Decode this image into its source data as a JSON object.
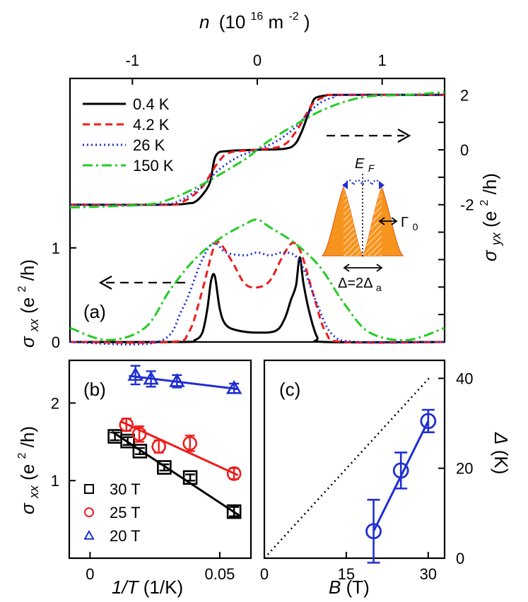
{
  "chart_data": [
    {
      "id": "a",
      "type": "line",
      "panel_label": "(a)",
      "top_axis": {
        "label_var": "n",
        "label_unit": "(10",
        "label_exp": "16",
        "label_unit2": " m",
        "label_exp2": "-2",
        "label_close": ")",
        "range": [
          -1.5,
          1.5
        ],
        "ticks": [
          -1,
          0,
          1
        ],
        "tick_labels": [
          "-1",
          "0",
          "1"
        ]
      },
      "left_axis": {
        "label_var": "σ",
        "label_sub": "xx",
        "label_unit": " (e",
        "label_exp": "2",
        "label_close": "/h)",
        "range": [
          0,
          2.8
        ],
        "ticks": [
          0,
          1
        ],
        "tick_labels": [
          "0",
          "1"
        ]
      },
      "right_axis": {
        "label_var": "σ",
        "label_sub": "yx",
        "label_unit": " (e",
        "label_exp": "2",
        "label_close": "/h)",
        "range": [
          -7,
          2.6
        ],
        "ticks": [
          2,
          0,
          -2
        ],
        "tick_labels": [
          "2",
          "0",
          "-2"
        ]
      },
      "legend": {
        "position": "top-left",
        "entries": [
          {
            "label": "0.4 K",
            "color": "#000000",
            "dash": "solid"
          },
          {
            "label": "4.2 K",
            "color": "#ee1c1c",
            "dash": "dash"
          },
          {
            "label": "26 K",
            "color": "#1f2fd1",
            "dash": "dot"
          },
          {
            "label": "150 K",
            "color": "#22cc22",
            "dash": "dashdot"
          }
        ]
      },
      "series_yx": [
        {
          "name": "0.4 K",
          "x": [
            -1.5,
            -0.72,
            -0.55,
            -0.5,
            -0.45,
            -0.38,
            -0.33,
            -0.22,
            0,
            0.22,
            0.3,
            0.35,
            0.4,
            0.44,
            0.47,
            0.55,
            0.65,
            1.5
          ],
          "y": [
            -2,
            -2,
            -1.95,
            -1.9,
            -1.7,
            -1.2,
            -0.2,
            -0.04,
            0,
            0.04,
            0.2,
            0.6,
            1.2,
            1.7,
            1.9,
            1.98,
            2,
            2
          ]
        },
        {
          "name": "4.2 K",
          "x": [
            -1.5,
            -0.75,
            -0.6,
            -0.45,
            -0.32,
            -0.22,
            0,
            0.2,
            0.3,
            0.38,
            0.45,
            0.55,
            0.65,
            1.5
          ],
          "y": [
            -2,
            -2,
            -1.9,
            -1.4,
            -0.5,
            -0.1,
            0,
            0.15,
            0.6,
            1.2,
            1.7,
            1.95,
            2,
            2
          ]
        },
        {
          "name": "26 K",
          "x": [
            -1.5,
            -0.8,
            -0.62,
            -0.45,
            -0.3,
            -0.15,
            0,
            0.15,
            0.3,
            0.4,
            0.5,
            0.6,
            0.7,
            1.5
          ],
          "y": [
            -2,
            -2,
            -1.85,
            -1.35,
            -0.7,
            -0.25,
            0,
            0.3,
            0.8,
            1.3,
            1.7,
            1.9,
            2,
            2
          ]
        },
        {
          "name": "150 K",
          "x": [
            -1.5,
            -0.9,
            -0.7,
            -0.5,
            -0.3,
            -0.1,
            0,
            0.1,
            0.3,
            0.5,
            0.7,
            0.9,
            1.2,
            1.5
          ],
          "y": [
            -2.1,
            -2.0,
            -1.8,
            -1.4,
            -0.9,
            -0.35,
            0,
            0.35,
            0.9,
            1.4,
            1.75,
            1.95,
            2.0,
            2.1
          ]
        }
      ],
      "series_xx": [
        {
          "name": "0.4 K",
          "x": [
            -1.5,
            -0.6,
            -0.5,
            -0.44,
            -0.4,
            -0.37,
            -0.34,
            -0.3,
            -0.25,
            -0.15,
            0,
            0.15,
            0.22,
            0.27,
            0.31,
            0.34,
            0.37,
            0.42,
            0.48,
            0.55,
            1.5
          ],
          "y": [
            0,
            0,
            0.02,
            0.1,
            0.35,
            0.65,
            0.7,
            0.35,
            0.18,
            0.12,
            0.1,
            0.12,
            0.25,
            0.45,
            0.6,
            0.9,
            0.62,
            0.3,
            0.05,
            0,
            0
          ]
        },
        {
          "name": "4.2 K",
          "x": [
            -1.5,
            -0.7,
            -0.55,
            -0.45,
            -0.35,
            -0.3,
            -0.2,
            -0.1,
            0,
            0.1,
            0.2,
            0.28,
            0.35,
            0.45,
            0.55,
            0.7,
            1.5
          ],
          "y": [
            0,
            0,
            0.1,
            0.5,
            1.0,
            1.05,
            0.85,
            0.62,
            0.58,
            0.65,
            0.9,
            1.05,
            0.95,
            0.5,
            0.1,
            0,
            0
          ]
        },
        {
          "name": "26 K",
          "x": [
            -1.5,
            -0.8,
            -0.6,
            -0.45,
            -0.35,
            -0.25,
            -0.1,
            0,
            0.1,
            0.2,
            0.3,
            0.38,
            0.48,
            0.6,
            0.8,
            1.5
          ],
          "y": [
            0,
            0,
            0.35,
            0.85,
            1.05,
            0.95,
            0.92,
            0.95,
            0.92,
            0.95,
            0.92,
            0.75,
            0.4,
            0.08,
            0,
            0
          ]
        },
        {
          "name": "150 K",
          "x": [
            -1.5,
            -1.2,
            -0.9,
            -0.7,
            -0.5,
            -0.3,
            -0.1,
            0,
            0.1,
            0.3,
            0.5,
            0.7,
            0.9,
            1.2,
            1.5
          ],
          "y": [
            0.15,
            0.02,
            0.15,
            0.55,
            0.88,
            1.1,
            1.25,
            1.3,
            1.22,
            1.05,
            0.8,
            0.4,
            0.1,
            0.02,
            0.15
          ]
        }
      ],
      "annotations": {
        "ef_label": "E",
        "ef_sub": "F",
        "gamma_label": "Γ",
        "gamma_sub": "0",
        "delta_label": "Δ=2Δ",
        "delta_sub": "a"
      }
    },
    {
      "id": "b",
      "type": "scatter",
      "panel_label": "(b)",
      "xlabel": "1/T (1/K)",
      "ylabel_var": "σ",
      "ylabel_sub": "xx",
      "ylabel_unit": " (e",
      "ylabel_exp": "2",
      "ylabel_close": "/h)",
      "xlim": [
        -0.008,
        0.062
      ],
      "ylim": [
        0.0,
        2.55
      ],
      "xticks": [
        0,
        0.05
      ],
      "xtick_labels": [
        "0",
        "0.05"
      ],
      "yticks": [
        1,
        2
      ],
      "ytick_labels": [
        "1",
        "2"
      ],
      "series": [
        {
          "name": "30 T",
          "color": "#000000",
          "marker": "square",
          "x": [
            0.0096,
            0.0145,
            0.0192,
            0.0286,
            0.0386,
            0.0555
          ],
          "y": [
            1.57,
            1.51,
            1.38,
            1.17,
            1.04,
            0.6
          ],
          "err": [
            0.05,
            0.05,
            0.04,
            0.04,
            0.04,
            0.06
          ],
          "fit": [
            [
              0.0085,
              1.63
            ],
            [
              0.058,
              0.54
            ]
          ]
        },
        {
          "name": "25 T",
          "color": "#ee1c1c",
          "marker": "circle",
          "x": [
            0.014,
            0.019,
            0.0265,
            0.0385,
            0.0555
          ],
          "y": [
            1.72,
            1.6,
            1.44,
            1.48,
            1.09
          ],
          "err": [
            0.08,
            0.1,
            0.08,
            0.1,
            0.07
          ],
          "fit": [
            [
              0.012,
              1.76
            ],
            [
              0.057,
              1.07
            ]
          ]
        },
        {
          "name": "20 T",
          "color": "#1f2fd1",
          "marker": "triangle",
          "x": [
            0.0175,
            0.0235,
            0.0335,
            0.0555
          ],
          "y": [
            2.36,
            2.31,
            2.28,
            2.19
          ],
          "err": [
            0.12,
            0.1,
            0.08,
            0.06
          ],
          "fit": [
            [
              0.015,
              2.35
            ],
            [
              0.057,
              2.18
            ]
          ]
        }
      ],
      "legend": {
        "position": "bottom-left"
      }
    },
    {
      "id": "c",
      "type": "scatter",
      "panel_label": "(c)",
      "xlabel_var": "B",
      "xlabel_unit": " (T)",
      "ylabel_var": "Δ",
      "ylabel_unit": " (K)",
      "xlim": [
        0,
        33
      ],
      "ylim": [
        0,
        44
      ],
      "xticks": [
        0,
        15,
        30
      ],
      "xtick_labels": [
        "0",
        "15",
        "30"
      ],
      "yticks": [
        0,
        20,
        40
      ],
      "ytick_labels": [
        "0",
        "20",
        "40"
      ],
      "series": [
        {
          "name": "gap",
          "color": "#1f2fd1",
          "marker": "circle",
          "x": [
            20,
            25,
            30
          ],
          "y": [
            6,
            19.5,
            30.5
          ],
          "err": [
            7,
            4,
            2.5
          ],
          "fit": [
            [
              20,
              6
            ],
            [
              30,
              30.5
            ]
          ]
        }
      ],
      "reference_line": {
        "style": "dotted",
        "color": "#000000",
        "points": [
          [
            0,
            0
          ],
          [
            30.5,
            40.5
          ]
        ]
      }
    }
  ]
}
